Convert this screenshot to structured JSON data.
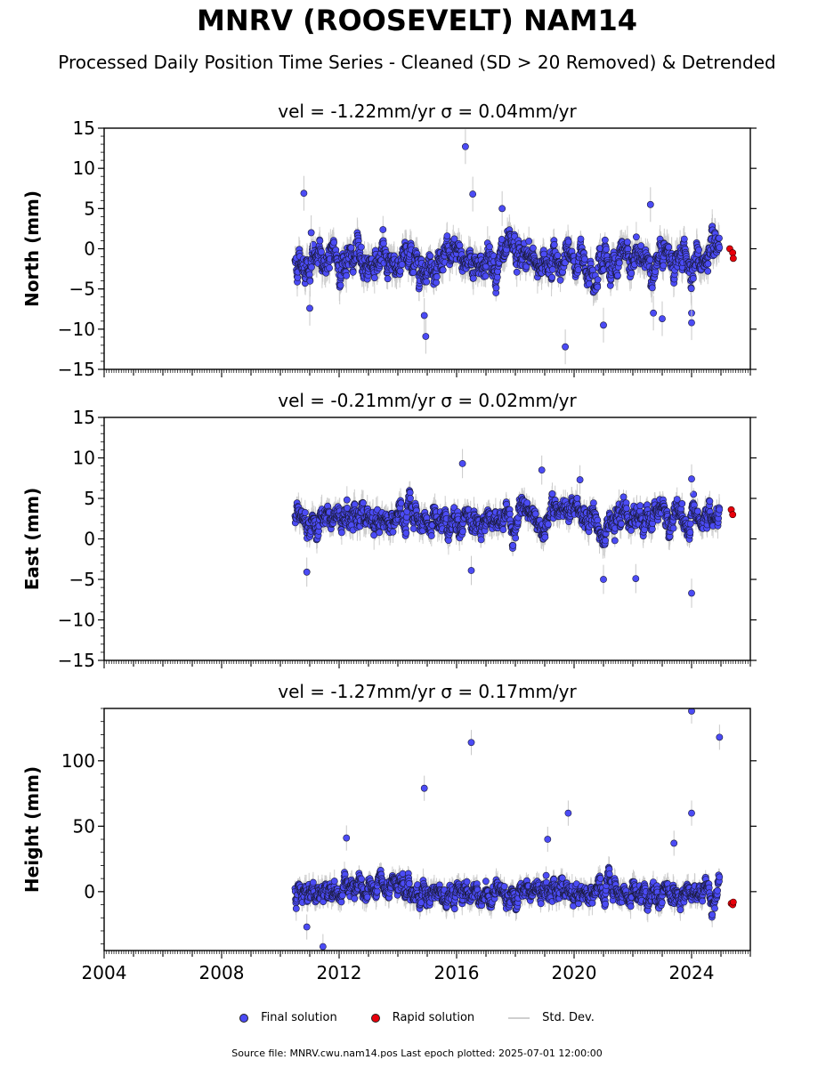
{
  "title": "MNRV (ROOSEVELT) NAM14",
  "subtitle": "Processed Daily Position Time Series - Cleaned (SD > 20 Removed) & Detrended",
  "legend": {
    "final": "Final solution",
    "rapid": "Rapid solution",
    "std": "Std. Dev."
  },
  "footnote": "Source file: MNRV.cwu.nam14.pos  Last epoch plotted: 2025-07-01 12:00:00",
  "colors": {
    "final": "#4b4bf5",
    "rapid": "#e8000b",
    "std": "#c8c8c8"
  },
  "chart_data": [
    {
      "type": "scatter",
      "title": "vel = -1.22mm/yr   σ = 0.04mm/yr",
      "ylabel": "North (mm)",
      "xlim": [
        2004,
        2026
      ],
      "ylim": [
        -15,
        15
      ],
      "yticks": [
        -15,
        -10,
        -5,
        0,
        5,
        10,
        15
      ],
      "ytick_labels": [
        "−15",
        "−10",
        "−5",
        "0",
        "5",
        "10",
        "15"
      ],
      "series": [
        {
          "name": "Final solution",
          "x_range": [
            2010.5,
            2024.95
          ],
          "baseline": -1.5,
          "spread": 1.8
        },
        {
          "name": "Rapid solution",
          "x": [
            2025.3,
            2025.4,
            2025.42
          ],
          "y": [
            0.0,
            -0.5,
            -1.2
          ]
        }
      ],
      "outliers": [
        {
          "x": 2011.0,
          "y": -7.4
        },
        {
          "x": 2010.8,
          "y": 6.9
        },
        {
          "x": 2011.05,
          "y": 2.0
        },
        {
          "x": 2016.3,
          "y": 12.7
        },
        {
          "x": 2016.55,
          "y": 6.8
        },
        {
          "x": 2014.95,
          "y": -10.9
        },
        {
          "x": 2014.9,
          "y": -8.3
        },
        {
          "x": 2019.7,
          "y": -12.2
        },
        {
          "x": 2022.6,
          "y": 5.5
        },
        {
          "x": 2022.7,
          "y": -8.0
        },
        {
          "x": 2024.0,
          "y": -8.0
        },
        {
          "x": 2024.0,
          "y": -9.2
        },
        {
          "x": 2023.0,
          "y": -8.7
        },
        {
          "x": 2017.55,
          "y": 5.0
        },
        {
          "x": 2021.0,
          "y": -9.5
        }
      ]
    },
    {
      "type": "scatter",
      "title": "vel = -0.21mm/yr   σ = 0.02mm/yr",
      "ylabel": "East (mm)",
      "xlim": [
        2004,
        2026
      ],
      "ylim": [
        -15,
        15
      ],
      "yticks": [
        -15,
        -10,
        -5,
        0,
        5,
        10,
        15
      ],
      "ytick_labels": [
        "−15",
        "−10",
        "−5",
        "0",
        "5",
        "10",
        "15"
      ],
      "series": [
        {
          "name": "Final solution",
          "x_range": [
            2010.5,
            2024.95
          ],
          "baseline": 2.5,
          "spread": 1.5
        },
        {
          "name": "Rapid solution",
          "x": [
            2025.35,
            2025.4
          ],
          "y": [
            3.6,
            3.0
          ]
        }
      ],
      "outliers": [
        {
          "x": 2016.2,
          "y": 9.3
        },
        {
          "x": 2018.9,
          "y": 8.5
        },
        {
          "x": 2021.0,
          "y": -5.0
        },
        {
          "x": 2024.0,
          "y": -6.7
        },
        {
          "x": 2020.2,
          "y": 7.3
        },
        {
          "x": 2010.9,
          "y": -4.1
        },
        {
          "x": 2016.5,
          "y": -3.9
        },
        {
          "x": 2024.0,
          "y": 7.4
        },
        {
          "x": 2022.1,
          "y": -4.9
        }
      ]
    },
    {
      "type": "scatter",
      "title": "vel = -1.27mm/yr   σ = 0.17mm/yr",
      "ylabel": "Height (mm)",
      "xlim": [
        2004,
        2026
      ],
      "ylim": [
        -45,
        140
      ],
      "yticks": [
        0,
        50,
        100
      ],
      "ytick_labels": [
        "0",
        "50",
        "100"
      ],
      "xticks": [
        2004,
        2008,
        2012,
        2016,
        2020,
        2024
      ],
      "xtick_labels": [
        "2004",
        "2008",
        "2012",
        "2016",
        "2020",
        "2024"
      ],
      "series": [
        {
          "name": "Final solution",
          "x_range": [
            2010.5,
            2024.95
          ],
          "baseline": 0,
          "spread": 8
        },
        {
          "name": "Rapid solution",
          "x": [
            2025.35,
            2025.4,
            2025.42
          ],
          "y": [
            -9,
            -10,
            -8
          ]
        }
      ],
      "outliers": [
        {
          "x": 2011.45,
          "y": -42
        },
        {
          "x": 2014.9,
          "y": 79
        },
        {
          "x": 2016.5,
          "y": 114
        },
        {
          "x": 2019.8,
          "y": 60
        },
        {
          "x": 2024.0,
          "y": 138
        },
        {
          "x": 2024.0,
          "y": 60
        },
        {
          "x": 2024.95,
          "y": 118
        },
        {
          "x": 2012.25,
          "y": 41
        },
        {
          "x": 2019.1,
          "y": 40
        },
        {
          "x": 2023.4,
          "y": 37
        },
        {
          "x": 2010.9,
          "y": -27
        }
      ]
    }
  ]
}
